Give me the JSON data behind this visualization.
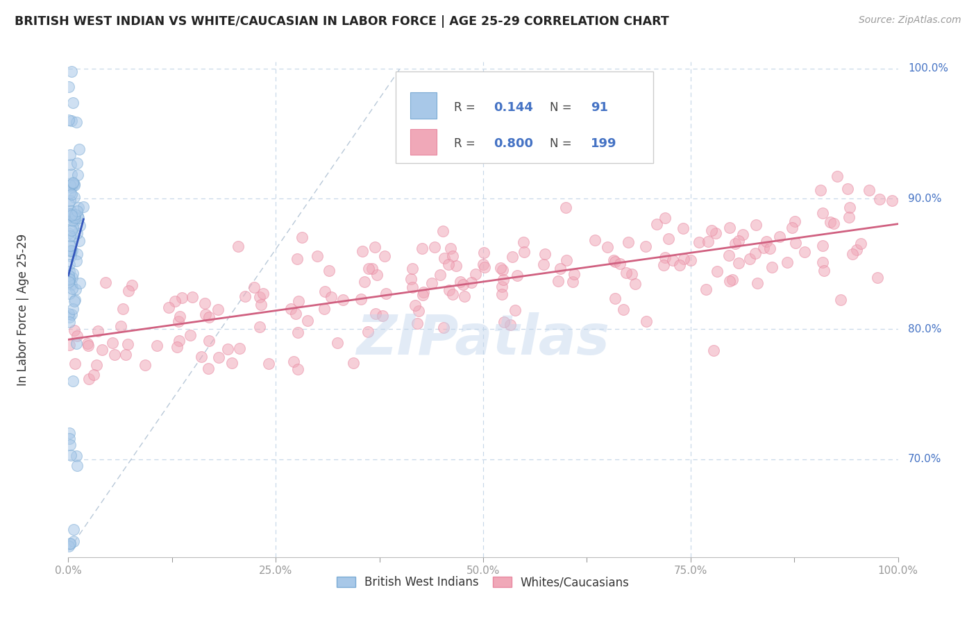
{
  "title": "BRITISH WEST INDIAN VS WHITE/CAUCASIAN IN LABOR FORCE | AGE 25-29 CORRELATION CHART",
  "source": "Source: ZipAtlas.com",
  "ylabel": "In Labor Force | Age 25-29",
  "legend_label1": "British West Indians",
  "legend_label2": "Whites/Caucasians",
  "R1": "0.144",
  "N1": "91",
  "R2": "0.800",
  "N2": "199",
  "color_blue_fill": "#a8c8e8",
  "color_blue_edge": "#7aaad4",
  "color_pink_fill": "#f0a8b8",
  "color_pink_edge": "#e888a0",
  "color_blue_line": "#3355bb",
  "color_pink_line": "#d06080",
  "color_diag": "#b8c8d8",
  "color_title": "#222222",
  "color_source": "#999999",
  "color_axis_label": "#333333",
  "color_tick_label": "#4472c4",
  "background": "#ffffff",
  "grid_color": "#c8d8e8",
  "watermark": "ZIPatlas",
  "xmin": 0.0,
  "xmax": 1.0,
  "ymin": 0.625,
  "ymax": 1.005,
  "blue_seed": 42,
  "pink_seed": 7,
  "blue_n": 91,
  "pink_n": 199,
  "marker_size": 130
}
